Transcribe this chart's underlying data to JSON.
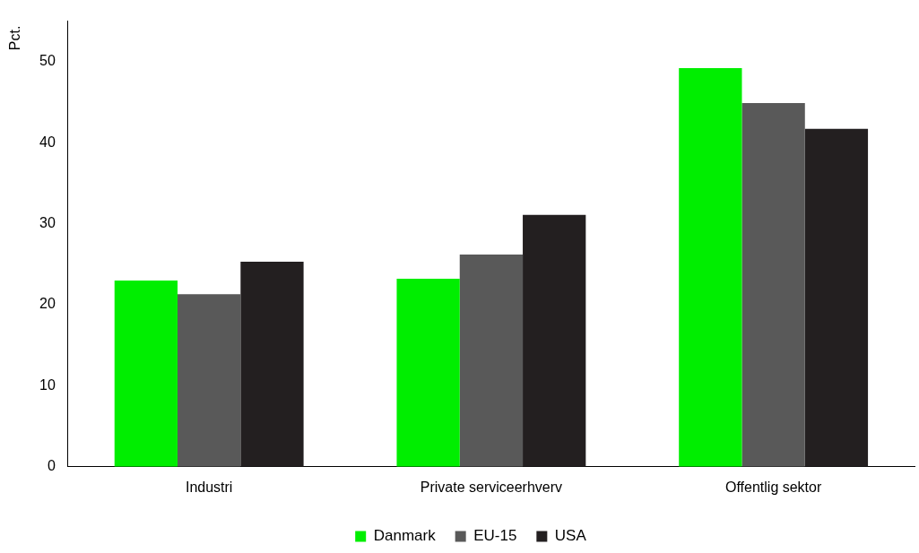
{
  "chart_data": {
    "type": "bar",
    "ylabel": "Pct.",
    "categories": [
      "Industri",
      "Private serviceerhverv",
      "Offentlig sektor"
    ],
    "series": [
      {
        "name": "Danmark",
        "color": "#00ee00",
        "values": [
          23.0,
          23.2,
          49.2
        ]
      },
      {
        "name": "EU-15",
        "color": "#595959",
        "values": [
          21.3,
          26.2,
          44.9
        ]
      },
      {
        "name": "USA",
        "color": "#231f20",
        "values": [
          25.3,
          31.1,
          41.7
        ]
      }
    ],
    "ylim": [
      0,
      55
    ],
    "yticks": [
      0,
      10,
      20,
      30,
      40,
      50
    ],
    "grid": false,
    "legend": "bottom"
  }
}
